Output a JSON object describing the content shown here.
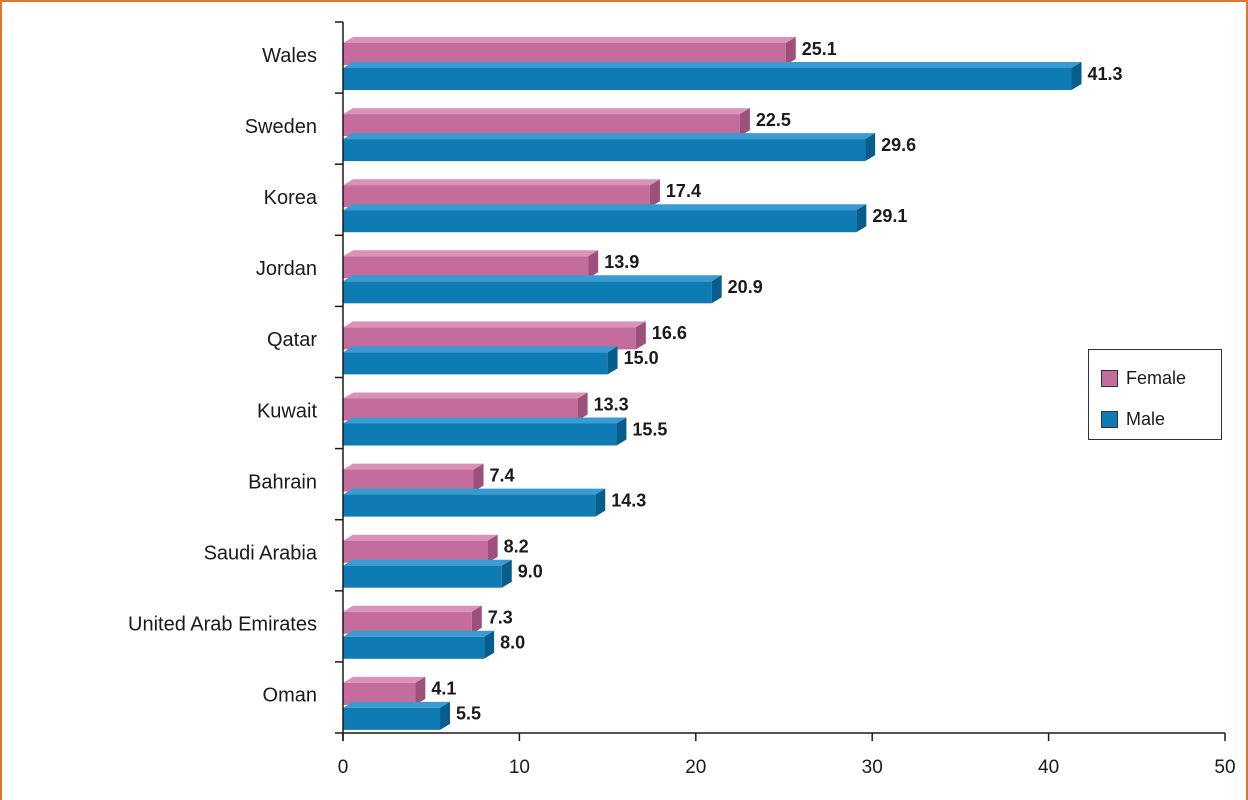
{
  "colors": {
    "frame": "#e2762c",
    "female_front": "#c46c9c",
    "female_top": "#d993b8",
    "female_side": "#9e4f7b",
    "male_front": "#0e7bb5",
    "male_top": "#3a9bd0",
    "male_side": "#075d8c"
  },
  "chart_data": {
    "type": "bar",
    "orientation": "horizontal",
    "categories": [
      "Wales",
      "Sweden",
      "Korea",
      "Jordan",
      "Qatar",
      "Kuwait",
      "Bahrain",
      "Saudi Arabia",
      "United Arab Emirates",
      "Oman"
    ],
    "series": [
      {
        "name": "Female",
        "values": [
          25.1,
          22.5,
          17.4,
          13.9,
          16.6,
          13.3,
          7.4,
          8.2,
          7.3,
          4.1
        ],
        "labels": [
          "25.1",
          "22.5",
          "17.4",
          "13.9",
          "16.6",
          "13.3",
          "7.4",
          "8.2",
          "7.3",
          "4.1"
        ]
      },
      {
        "name": "Male",
        "values": [
          41.3,
          29.6,
          29.1,
          20.9,
          15.0,
          15.5,
          14.3,
          9.0,
          8.0,
          5.5
        ],
        "labels": [
          "41.3",
          "29.6",
          "29.1",
          "20.9",
          "15.0",
          "15.5",
          "14.3",
          "9.0",
          "8.0",
          "5.5"
        ]
      }
    ],
    "xlim": [
      0,
      50
    ],
    "xticks": [
      "0",
      "10",
      "20",
      "30",
      "40",
      "50"
    ],
    "grid": false,
    "legend_position": "right",
    "legend": [
      "Female",
      "Male"
    ]
  }
}
